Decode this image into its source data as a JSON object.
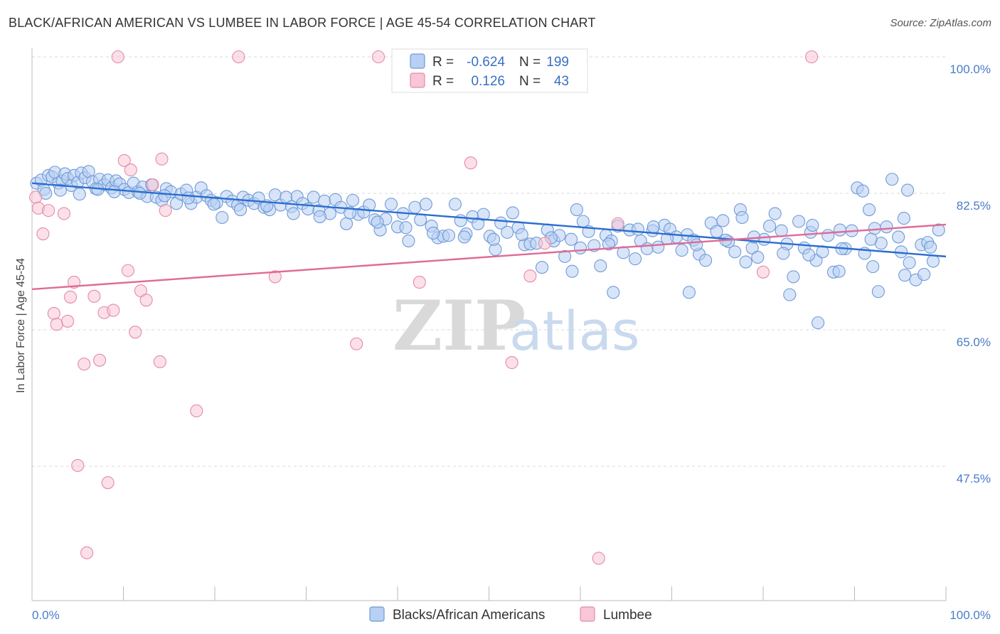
{
  "title": "BLACK/AFRICAN AMERICAN VS LUMBEE IN LABOR FORCE | AGE 45-54 CORRELATION CHART",
  "source": "Source: ZipAtlas.com",
  "watermark": {
    "zip": "ZIP",
    "atlas": "atlas"
  },
  "chart_data": {
    "type": "scatter",
    "xlabel": "",
    "ylabel": "In Labor Force | Age 45-54",
    "xlim": [
      0,
      100
    ],
    "ylim": [
      30,
      102
    ],
    "x_tick_labels": [
      {
        "value": 0,
        "label": "0.0%"
      },
      {
        "value": 100,
        "label": "100.0%"
      }
    ],
    "y_ticks": [
      {
        "value": 100,
        "label": "100.0%"
      },
      {
        "value": 82.5,
        "label": "82.5%"
      },
      {
        "value": 65,
        "label": "65.0%"
      },
      {
        "value": 47.5,
        "label": "47.5%"
      }
    ],
    "grid": "horizontal dashed",
    "legend": {
      "placement": "top-center",
      "entries": [
        {
          "r_label": "R =",
          "r_value": "-0.624",
          "n_label": "N =",
          "n_value": "199"
        },
        {
          "r_label": "R =",
          "r_value": "0.126",
          "n_label": "N =",
          "n_value": "43"
        }
      ]
    },
    "series": [
      {
        "name": "Blacks/African Americans",
        "fill": "#b8d0f3",
        "stroke": "#6f9ad8",
        "trend_color": "#2a6dd0",
        "trend": {
          "x": [
            0,
            100
          ],
          "y": [
            83.8,
            74.4
          ]
        },
        "points": [
          [
            0.5,
            83.8
          ],
          [
            1.0,
            84.2
          ],
          [
            1.3,
            83.0
          ],
          [
            1.8,
            84.8
          ],
          [
            2.2,
            84.6
          ],
          [
            2.5,
            85.2
          ],
          [
            2.9,
            83.8
          ],
          [
            3.3,
            84.1
          ],
          [
            3.6,
            85.0
          ],
          [
            3.9,
            84.4
          ],
          [
            4.3,
            83.5
          ],
          [
            4.6,
            84.8
          ],
          [
            5.0,
            83.9
          ],
          [
            5.4,
            85.1
          ],
          [
            5.8,
            84.5
          ],
          [
            6.2,
            85.3
          ],
          [
            6.6,
            84.0
          ],
          [
            7.0,
            83.1
          ],
          [
            7.4,
            84.3
          ],
          [
            7.9,
            83.6
          ],
          [
            8.3,
            84.2
          ],
          [
            8.7,
            83.2
          ],
          [
            9.2,
            84.1
          ],
          [
            9.6,
            83.7
          ],
          [
            10.1,
            83.0
          ],
          [
            10.6,
            82.6
          ],
          [
            11.1,
            83.8
          ],
          [
            11.6,
            82.7
          ],
          [
            12.1,
            83.3
          ],
          [
            12.6,
            82.1
          ],
          [
            13.1,
            83.6
          ],
          [
            13.6,
            82.0
          ],
          [
            14.2,
            81.6
          ],
          [
            14.7,
            83.1
          ],
          [
            15.2,
            82.7
          ],
          [
            15.8,
            81.2
          ],
          [
            16.3,
            82.4
          ],
          [
            16.9,
            82.9
          ],
          [
            17.4,
            81.2
          ],
          [
            18.0,
            82.0
          ],
          [
            18.5,
            83.2
          ],
          [
            19.1,
            82.2
          ],
          [
            19.6,
            81.6
          ],
          [
            20.2,
            81.3
          ],
          [
            20.8,
            79.4
          ],
          [
            21.3,
            82.1
          ],
          [
            21.9,
            81.5
          ],
          [
            22.5,
            81.0
          ],
          [
            23.1,
            82.0
          ],
          [
            23.7,
            81.6
          ],
          [
            24.3,
            81.2
          ],
          [
            24.8,
            81.9
          ],
          [
            25.4,
            80.7
          ],
          [
            26.0,
            80.4
          ],
          [
            26.6,
            82.3
          ],
          [
            27.2,
            81.0
          ],
          [
            27.8,
            82.0
          ],
          [
            28.4,
            80.8
          ],
          [
            29.0,
            82.1
          ],
          [
            29.6,
            81.2
          ],
          [
            30.2,
            80.5
          ],
          [
            30.8,
            82.0
          ],
          [
            31.4,
            80.3
          ],
          [
            32.0,
            81.5
          ],
          [
            32.6,
            79.9
          ],
          [
            33.2,
            81.7
          ],
          [
            33.8,
            80.7
          ],
          [
            34.4,
            78.6
          ],
          [
            35.1,
            81.6
          ],
          [
            35.7,
            79.8
          ],
          [
            36.3,
            80.1
          ],
          [
            36.9,
            81.0
          ],
          [
            37.5,
            79.1
          ],
          [
            38.1,
            77.8
          ],
          [
            38.7,
            79.2
          ],
          [
            39.3,
            81.1
          ],
          [
            40.0,
            78.2
          ],
          [
            40.6,
            79.9
          ],
          [
            41.2,
            76.4
          ],
          [
            41.9,
            80.7
          ],
          [
            42.5,
            79.1
          ],
          [
            43.1,
            81.1
          ],
          [
            43.7,
            78.3
          ],
          [
            44.4,
            76.8
          ],
          [
            45.0,
            77.0
          ],
          [
            45.6,
            77.1
          ],
          [
            46.3,
            81.1
          ],
          [
            46.9,
            79.0
          ],
          [
            47.5,
            77.3
          ],
          [
            48.2,
            79.5
          ],
          [
            48.8,
            78.6
          ],
          [
            49.4,
            79.8
          ],
          [
            50.1,
            77.0
          ],
          [
            50.7,
            75.3
          ],
          [
            51.3,
            78.7
          ],
          [
            52.0,
            77.5
          ],
          [
            52.6,
            80.0
          ],
          [
            53.2,
            78.1
          ],
          [
            53.9,
            75.9
          ],
          [
            54.5,
            76.0
          ],
          [
            55.2,
            76.1
          ],
          [
            55.8,
            73.0
          ],
          [
            56.4,
            77.8
          ],
          [
            57.1,
            76.4
          ],
          [
            57.7,
            77.1
          ],
          [
            58.3,
            74.4
          ],
          [
            59.0,
            76.6
          ],
          [
            59.6,
            80.4
          ],
          [
            60.3,
            78.9
          ],
          [
            60.9,
            77.6
          ],
          [
            61.5,
            75.8
          ],
          [
            62.2,
            73.2
          ],
          [
            62.8,
            77.1
          ],
          [
            63.4,
            76.4
          ],
          [
            64.1,
            78.3
          ],
          [
            64.7,
            74.9
          ],
          [
            65.4,
            77.8
          ],
          [
            66.0,
            74.1
          ],
          [
            66.6,
            76.4
          ],
          [
            67.3,
            75.4
          ],
          [
            67.9,
            77.7
          ],
          [
            68.5,
            75.6
          ],
          [
            69.2,
            78.4
          ],
          [
            69.8,
            77.9
          ],
          [
            70.5,
            76.9
          ],
          [
            71.1,
            75.2
          ],
          [
            71.7,
            77.2
          ],
          [
            72.4,
            76.5
          ],
          [
            73.0,
            74.7
          ],
          [
            73.7,
            73.9
          ],
          [
            74.3,
            78.7
          ],
          [
            74.9,
            77.6
          ],
          [
            75.6,
            79.0
          ],
          [
            76.2,
            76.3
          ],
          [
            76.9,
            75.0
          ],
          [
            77.5,
            80.4
          ],
          [
            78.1,
            73.7
          ],
          [
            78.8,
            75.5
          ],
          [
            79.4,
            74.3
          ],
          [
            80.1,
            76.6
          ],
          [
            80.7,
            78.3
          ],
          [
            81.3,
            79.9
          ],
          [
            82.0,
            77.7
          ],
          [
            82.6,
            76.0
          ],
          [
            83.3,
            71.8
          ],
          [
            83.9,
            78.9
          ],
          [
            84.5,
            75.5
          ],
          [
            85.2,
            77.5
          ],
          [
            85.8,
            73.9
          ],
          [
            86.5,
            75.0
          ],
          [
            87.1,
            77.1
          ],
          [
            87.7,
            72.4
          ],
          [
            88.4,
            77.8
          ],
          [
            89.0,
            75.4
          ],
          [
            89.7,
            77.7
          ],
          [
            90.3,
            83.2
          ],
          [
            90.9,
            82.8
          ],
          [
            91.6,
            80.4
          ],
          [
            92.2,
            78.0
          ],
          [
            92.9,
            76.1
          ],
          [
            93.5,
            78.2
          ],
          [
            94.1,
            84.3
          ],
          [
            94.8,
            76.9
          ],
          [
            95.4,
            79.3
          ],
          [
            96.0,
            73.6
          ],
          [
            96.7,
            71.4
          ],
          [
            97.3,
            75.9
          ],
          [
            98.0,
            76.2
          ],
          [
            98.6,
            73.8
          ],
          [
            99.2,
            77.8
          ],
          [
            1.5,
            82.5
          ],
          [
            3.1,
            82.9
          ],
          [
            5.2,
            82.4
          ],
          [
            7.2,
            83.0
          ],
          [
            9.0,
            82.7
          ],
          [
            11.8,
            82.5
          ],
          [
            14.5,
            82.2
          ],
          [
            17.1,
            81.9
          ],
          [
            19.9,
            81.1
          ],
          [
            22.8,
            80.4
          ],
          [
            25.7,
            80.9
          ],
          [
            28.6,
            79.9
          ],
          [
            31.5,
            79.5
          ],
          [
            34.8,
            80.0
          ],
          [
            37.8,
            78.8
          ],
          [
            40.9,
            78.1
          ],
          [
            43.9,
            77.4
          ],
          [
            47.3,
            76.9
          ],
          [
            50.5,
            76.6
          ],
          [
            53.6,
            77.2
          ],
          [
            56.8,
            76.8
          ],
          [
            60.0,
            75.5
          ],
          [
            63.1,
            76.0
          ],
          [
            66.3,
            77.9
          ],
          [
            69.5,
            76.7
          ],
          [
            72.7,
            75.9
          ],
          [
            75.9,
            76.5
          ],
          [
            79.0,
            76.9
          ],
          [
            82.2,
            74.8
          ],
          [
            85.4,
            78.4
          ],
          [
            88.6,
            75.4
          ],
          [
            91.8,
            76.6
          ],
          [
            95.1,
            75.0
          ],
          [
            98.3,
            75.6
          ],
          [
            97.6,
            72.1
          ],
          [
            92.6,
            69.9
          ],
          [
            88.3,
            72.5
          ],
          [
            91.1,
            74.8
          ],
          [
            95.8,
            82.9
          ],
          [
            59.1,
            72.5
          ],
          [
            63.6,
            69.8
          ],
          [
            71.9,
            69.8
          ],
          [
            86.0,
            65.9
          ],
          [
            68.0,
            78.2
          ],
          [
            77.7,
            79.4
          ],
          [
            85.0,
            74.6
          ],
          [
            92.0,
            73.1
          ],
          [
            82.9,
            69.5
          ],
          [
            95.5,
            72.0
          ]
        ]
      },
      {
        "name": "Lumbee",
        "fill": "#f8c6d6",
        "stroke": "#e58aa8",
        "trend_color": "#e06a98",
        "trend": {
          "x": [
            0,
            100
          ],
          "y": [
            70.2,
            78.5
          ]
        },
        "points": [
          [
            0.4,
            82.0
          ],
          [
            0.7,
            80.6
          ],
          [
            1.2,
            77.3
          ],
          [
            1.8,
            80.3
          ],
          [
            2.4,
            67.1
          ],
          [
            2.7,
            65.7
          ],
          [
            3.5,
            79.9
          ],
          [
            3.9,
            66.1
          ],
          [
            4.2,
            69.2
          ],
          [
            4.6,
            71.1
          ],
          [
            5.0,
            47.6
          ],
          [
            5.7,
            60.6
          ],
          [
            6.0,
            36.4
          ],
          [
            6.8,
            69.3
          ],
          [
            7.4,
            61.1
          ],
          [
            7.9,
            67.2
          ],
          [
            8.3,
            45.4
          ],
          [
            8.9,
            67.5
          ],
          [
            9.4,
            100.0
          ],
          [
            10.1,
            86.7
          ],
          [
            10.5,
            72.6
          ],
          [
            10.8,
            85.5
          ],
          [
            11.3,
            64.7
          ],
          [
            11.9,
            70.0
          ],
          [
            12.5,
            68.8
          ],
          [
            13.2,
            83.6
          ],
          [
            14.0,
            60.9
          ],
          [
            14.2,
            86.9
          ],
          [
            14.6,
            80.3
          ],
          [
            18.0,
            54.6
          ],
          [
            22.6,
            100.0
          ],
          [
            26.6,
            71.8
          ],
          [
            35.5,
            63.2
          ],
          [
            37.9,
            100.0
          ],
          [
            42.4,
            71.1
          ],
          [
            48.0,
            86.4
          ],
          [
            52.5,
            60.8
          ],
          [
            54.5,
            71.9
          ],
          [
            56.1,
            76.1
          ],
          [
            62.0,
            35.7
          ],
          [
            64.1,
            78.6
          ],
          [
            80.0,
            72.4
          ],
          [
            85.3,
            100.0
          ]
        ]
      }
    ]
  }
}
